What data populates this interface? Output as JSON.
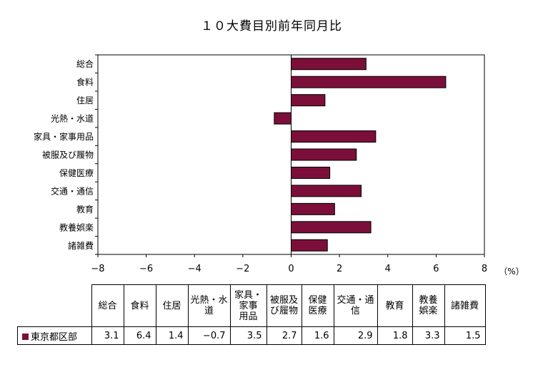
{
  "title": "１０大費目別前年同月比",
  "chart_data": {
    "type": "bar",
    "orientation": "horizontal",
    "title": "１０大費目別前年同月比",
    "categories": [
      "総合",
      "食料",
      "住居",
      "光熱・水道",
      "家具・家事用品",
      "被服及び履物",
      "保健医療",
      "交通・通信",
      "教育",
      "教養娯楽",
      "諸雑費"
    ],
    "series": [
      {
        "name": "東京都区部",
        "values": [
          3.1,
          6.4,
          1.4,
          -0.7,
          3.5,
          2.7,
          1.6,
          2.9,
          1.8,
          3.3,
          1.5
        ]
      }
    ],
    "xlim": [
      -8,
      8
    ],
    "xticks": [
      -8,
      -6,
      -4,
      -2,
      0,
      2,
      4,
      6,
      8
    ],
    "xticklabels": [
      "−8",
      "−6",
      "−4",
      "−2",
      "0",
      "2",
      "4",
      "6",
      "8"
    ],
    "unit_label": "（%）",
    "bar_color": "#7b0f3a",
    "grid": false
  },
  "table": {
    "headers": [
      [
        "総合"
      ],
      [
        "食料"
      ],
      [
        "住居"
      ],
      [
        "光熱・水",
        "道"
      ],
      [
        "家具・",
        "家事",
        "用品"
      ],
      [
        "被服及",
        "び履物"
      ],
      [
        "保健",
        "医療"
      ],
      [
        "交通・通",
        "信"
      ],
      [
        "教育"
      ],
      [
        "教養",
        "娯楽"
      ],
      [
        "諸雑費"
      ]
    ],
    "row_label": "東京都区部",
    "row_values": [
      "3.1",
      "6.4",
      "1.4",
      "−0.7",
      "3.5",
      "2.7",
      "1.6",
      "2.9",
      "1.8",
      "3.3",
      "1.5"
    ]
  }
}
